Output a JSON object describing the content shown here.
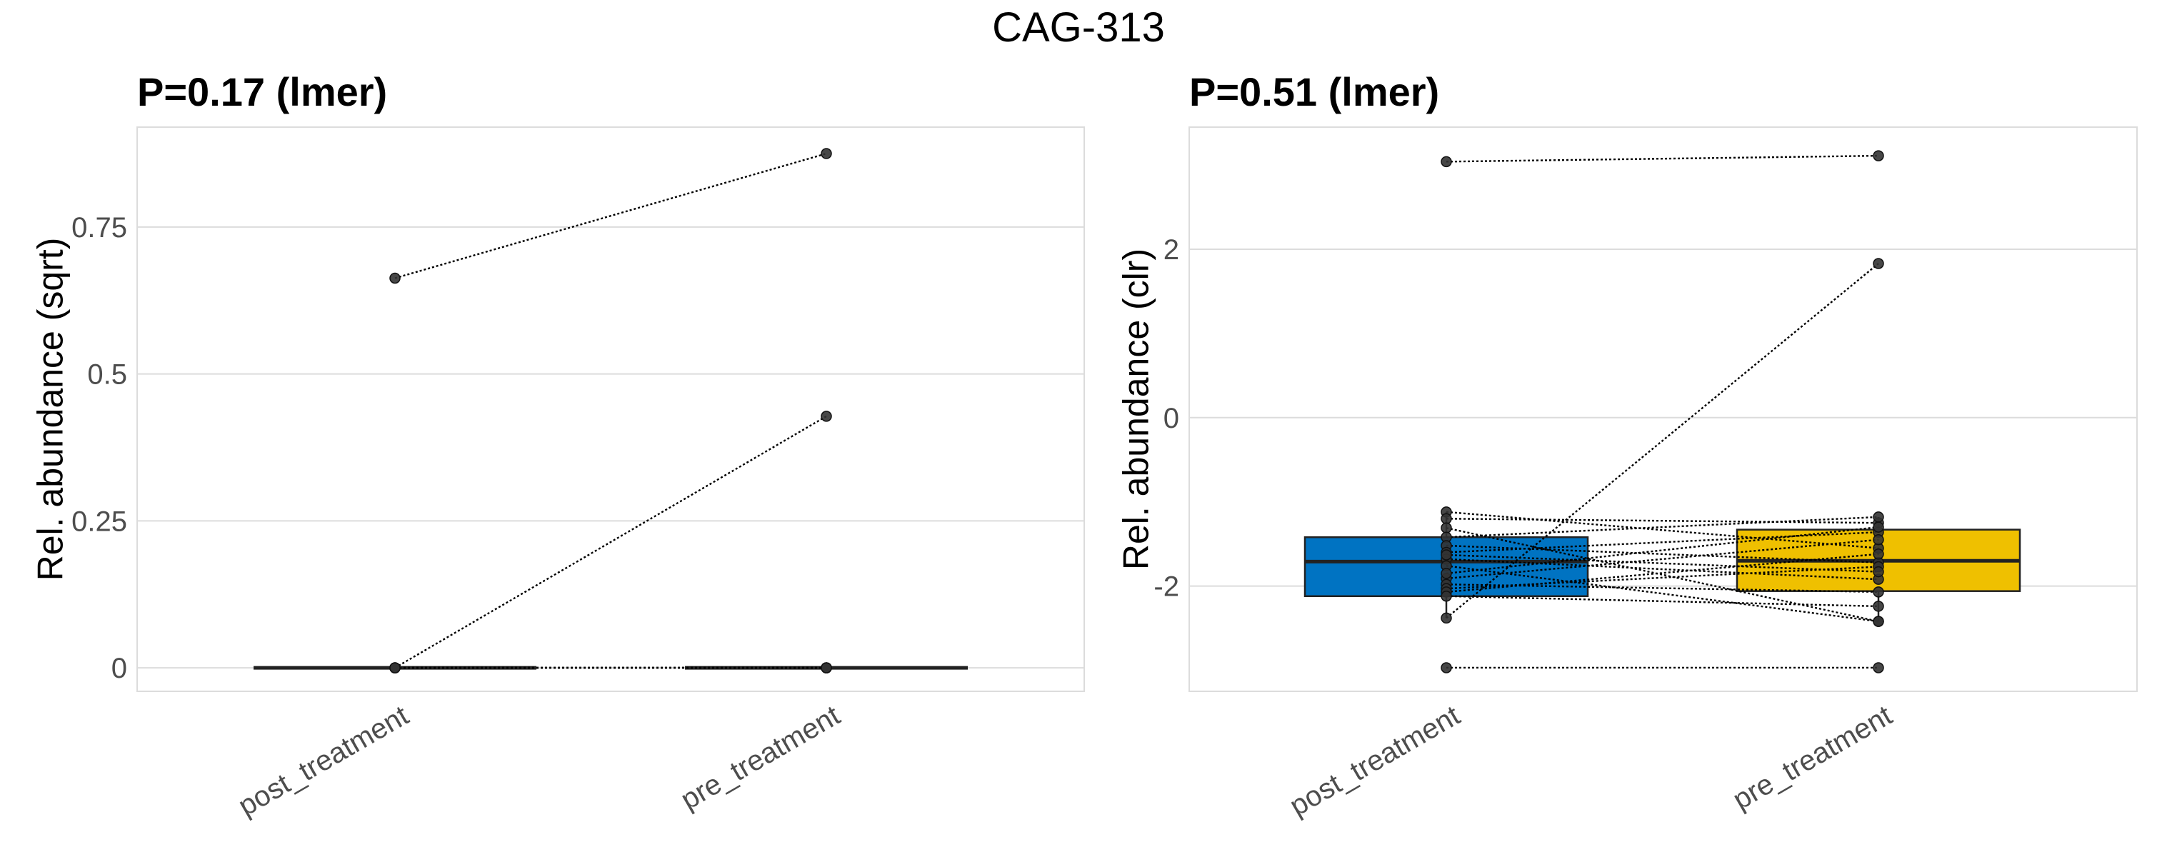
{
  "figure_title": "CAG-313",
  "chart_data": [
    {
      "type": "box",
      "subtitle": "P=0.17 (lmer)",
      "ylabel": "Rel. abundance (sqrt)",
      "xlabel": "",
      "categories": [
        "post_treatment",
        "pre_treatment"
      ],
      "ylim": [
        -0.04,
        0.92
      ],
      "yticks": [
        0,
        0.25,
        0.5,
        0.75
      ],
      "ytick_labels": [
        "0",
        "0.25",
        "0.5",
        "0.75"
      ],
      "grid": true,
      "boxes": [
        {
          "category": "post_treatment",
          "q1": 0,
          "median": 0,
          "q3": 0,
          "whisker_low": 0,
          "whisker_high": 0,
          "fill": "#0073C2"
        },
        {
          "category": "pre_treatment",
          "q1": 0,
          "median": 0,
          "q3": 0,
          "whisker_low": 0,
          "whisker_high": 0,
          "fill": "#EFC000"
        }
      ],
      "paired_points": [
        {
          "post_treatment": 0.663,
          "pre_treatment": 0.875
        },
        {
          "post_treatment": 0.0,
          "pre_treatment": 0.428
        },
        {
          "post_treatment": 0.0,
          "pre_treatment": 0.0
        },
        {
          "post_treatment": 0.0,
          "pre_treatment": 0.0
        },
        {
          "post_treatment": 0.0,
          "pre_treatment": 0.0
        },
        {
          "post_treatment": 0.0,
          "pre_treatment": 0.0
        },
        {
          "post_treatment": 0.0,
          "pre_treatment": 0.0
        },
        {
          "post_treatment": 0.0,
          "pre_treatment": 0.0
        }
      ]
    },
    {
      "type": "box",
      "subtitle": "P=0.51 (lmer)",
      "ylabel": "Rel. abundance (clr)",
      "xlabel": "",
      "categories": [
        "post_treatment",
        "pre_treatment"
      ],
      "ylim": [
        -3.25,
        3.45
      ],
      "yticks": [
        -2,
        0,
        2
      ],
      "ytick_labels": [
        "-2",
        "0",
        "2"
      ],
      "grid": true,
      "boxes": [
        {
          "category": "post_treatment",
          "q1": -2.12,
          "median": -1.71,
          "q3": -1.42,
          "whisker_low": -2.38,
          "whisker_high": -1.12,
          "fill": "#0073C2"
        },
        {
          "category": "pre_treatment",
          "q1": -2.06,
          "median": -1.7,
          "q3": -1.33,
          "whisker_low": -2.42,
          "whisker_high": -1.18,
          "fill": "#EFC000"
        }
      ],
      "paired_points": [
        {
          "post_treatment": 3.04,
          "pre_treatment": 3.11
        },
        {
          "post_treatment": -2.38,
          "pre_treatment": 1.83
        },
        {
          "post_treatment": -2.97,
          "pre_treatment": -2.97
        },
        {
          "post_treatment": -1.12,
          "pre_treatment": -1.55
        },
        {
          "post_treatment": -1.2,
          "pre_treatment": -1.25
        },
        {
          "post_treatment": -1.31,
          "pre_treatment": -2.42
        },
        {
          "post_treatment": -1.42,
          "pre_treatment": -1.18
        },
        {
          "post_treatment": -1.52,
          "pre_treatment": -1.72
        },
        {
          "post_treatment": -1.6,
          "pre_treatment": -1.36
        },
        {
          "post_treatment": -1.68,
          "pre_treatment": -1.92
        },
        {
          "post_treatment": -1.76,
          "pre_treatment": -2.42
        },
        {
          "post_treatment": -1.91,
          "pre_treatment": -1.45
        },
        {
          "post_treatment": -1.98,
          "pre_treatment": -2.07
        },
        {
          "post_treatment": -2.03,
          "pre_treatment": -1.77
        },
        {
          "post_treatment": -2.07,
          "pre_treatment": -1.62
        },
        {
          "post_treatment": -2.12,
          "pre_treatment": -2.24
        },
        {
          "post_treatment": -1.63,
          "pre_treatment": -1.83
        },
        {
          "post_treatment": -1.85,
          "pre_treatment": -1.3
        }
      ]
    }
  ]
}
